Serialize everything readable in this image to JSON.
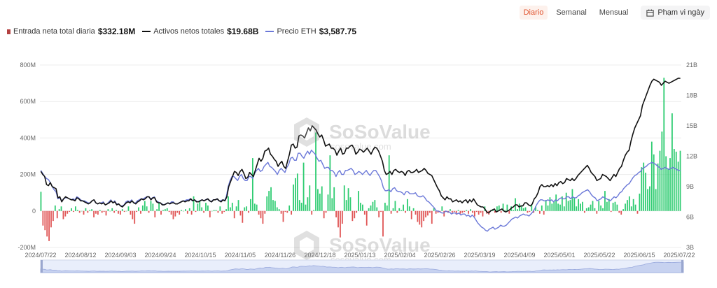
{
  "header": {
    "tabs": [
      {
        "label": "Diario",
        "active": true
      },
      {
        "label": "Semanal",
        "active": false
      },
      {
        "label": "Mensual",
        "active": false
      }
    ],
    "date_range_label": "Phạm vi ngày",
    "date_range_icon": "calendar-icon"
  },
  "legend": {
    "items": [
      {
        "label": "Entrada neta total diaria",
        "value": "$332.18M",
        "color": "#2e7d4f",
        "kind": "bar"
      },
      {
        "label": "Activos netos totales",
        "value": "$19.68B",
        "color": "#111111",
        "kind": "line"
      },
      {
        "label": "Precio ETH",
        "value": "$3,587.75",
        "color": "#6b78d8",
        "kind": "line"
      }
    ]
  },
  "watermark": {
    "brand": "SoSoValue",
    "url": "sosovalue.com"
  },
  "colors": {
    "inflow": "#2ecc71",
    "outflow": "#e05555",
    "assets_line": "#111111",
    "eth_line": "#6b78d8",
    "grid": "#ececec"
  },
  "chart_data": {
    "type": "bar",
    "x_tick_labels": [
      "2024/07/22",
      "2024/08/12",
      "2024/09/03",
      "2024/09/24",
      "2024/10/15",
      "2024/11/05",
      "2024/11/26",
      "2024/12/18",
      "2025/01/13",
      "2025/02/04",
      "2025/02/26",
      "2025/03/19",
      "2025/04/09",
      "2025/05/01",
      "2025/05/22",
      "2025/06/15",
      "2025/07/22"
    ],
    "y_left": {
      "ticks": [
        "800M",
        "600M",
        "400M",
        "200M",
        "0",
        "-200M"
      ],
      "range": [
        -200,
        800
      ],
      "unit": "M USD"
    },
    "y_right": {
      "ticks": [
        "21B",
        "18B",
        "15B",
        "12B",
        "9B",
        "6B",
        "3B"
      ],
      "range": [
        3,
        21
      ],
      "unit": "B USD"
    },
    "series": [
      {
        "name": "Entrada neta total diaria",
        "kind": "bar",
        "values": [
          105,
          -80,
          -105,
          -140,
          -165,
          -90,
          -55,
          30,
          -40,
          10,
          25,
          -45,
          -30,
          -15,
          -5,
          15,
          -5,
          25,
          5,
          -10,
          0,
          -20,
          15,
          -10,
          5,
          10,
          -35,
          -15,
          -20,
          5,
          -10,
          -5,
          -25,
          10,
          0,
          15,
          -10,
          5,
          -15,
          -20,
          10,
          -5,
          0,
          25,
          -20,
          -45,
          -70,
          -5,
          20,
          -15,
          30,
          55,
          25,
          -10,
          55,
          40,
          -35,
          10,
          45,
          -20,
          5,
          10,
          15,
          -5,
          -20,
          -45,
          -30,
          -10,
          -20,
          5,
          0,
          10,
          -15,
          15,
          -20,
          80,
          -5,
          40,
          55,
          20,
          -10,
          45,
          30,
          -35,
          0,
          5,
          5,
          -10,
          25,
          -15,
          -5,
          10,
          80,
          20,
          45,
          -40,
          25,
          60,
          -25,
          -65,
          20,
          25,
          -10,
          65,
          290,
          40,
          35,
          -20,
          -40,
          -70,
          -15,
          80,
          110,
          130,
          60,
          55,
          20,
          10,
          -15,
          -60,
          -5,
          -10,
          30,
          -20,
          145,
          180,
          205,
          60,
          45,
          265,
          35,
          75,
          140,
          -20,
          5,
          430,
          120,
          95,
          135,
          -40,
          -10,
          90,
          305,
          70,
          130,
          -35,
          -90,
          -145,
          -70,
          140,
          60,
          125,
          75,
          -55,
          -40,
          -10,
          110,
          45,
          35,
          -20,
          -80,
          15,
          30,
          50,
          60,
          20,
          -35,
          -5,
          -140,
          45,
          30,
          305,
          -15,
          15,
          55,
          -10,
          15,
          5,
          35,
          -10,
          65,
          25,
          -45,
          15,
          -20,
          -60,
          -75,
          -90,
          -55,
          -35,
          -25,
          -10,
          -70,
          15,
          -15,
          -10,
          -5,
          25,
          -30,
          -5,
          -10,
          10,
          -10,
          -5,
          -20,
          5,
          -15,
          -10,
          -5,
          5,
          -15,
          10,
          -10,
          -30,
          -5,
          -20,
          -10,
          -30,
          25,
          -15,
          -20,
          5,
          10,
          -10,
          25,
          30,
          -10,
          40,
          5,
          35,
          -15,
          25,
          5,
          70,
          10,
          40,
          25,
          15,
          20,
          -10,
          -5,
          35,
          -10,
          25,
          5,
          -15,
          30,
          -20,
          60,
          30,
          75,
          40,
          55,
          90,
          40,
          35,
          80,
          25,
          100,
          55,
          60,
          120,
          70,
          25,
          65,
          40,
          50,
          -10,
          15,
          20,
          35,
          55,
          15,
          -15,
          55,
          30,
          15,
          110,
          50,
          65,
          -5,
          45,
          50,
          35,
          -10,
          -20,
          10,
          40,
          60,
          80,
          25,
          65,
          35,
          -15,
          95,
          240,
          265,
          210,
          120,
          135,
          380,
          310,
          120,
          260,
          330,
          435,
          730,
          300,
          230,
          290,
          535,
          340,
          325,
          270,
          330
        ],
        "unit": "M USD"
      },
      {
        "name": "Activos netos totales",
        "kind": "line",
        "values": [
          10.5,
          10.2,
          10.0,
          9.2,
          9.1,
          9.4,
          9.0,
          8.9,
          8.8,
          7.9,
          8.0,
          7.5,
          7.8,
          8.0,
          7.9,
          7.8,
          7.7,
          7.7,
          7.6,
          7.9,
          7.8,
          7.6,
          7.6,
          7.5,
          7.4,
          7.3,
          7.4,
          7.6,
          7.7,
          7.4,
          7.3,
          7.4,
          7.3,
          7.4,
          7.2,
          7.3,
          7.4,
          7.6,
          7.4,
          7.5,
          7.2,
          7.3,
          7.1,
          7.0,
          7.2,
          7.4,
          7.5,
          7.4,
          7.6,
          7.4,
          7.3,
          7.5,
          7.6,
          7.8,
          7.7,
          7.8,
          8.0,
          8.0,
          7.7,
          7.9,
          7.9,
          7.5,
          7.4,
          7.4,
          7.2,
          7.2,
          7.3,
          7.4,
          7.3,
          7.4,
          7.4,
          7.3,
          7.3,
          7.4,
          7.5,
          7.6,
          7.5,
          7.6,
          7.6,
          7.8,
          7.6,
          7.7,
          7.5,
          7.5,
          7.6,
          7.7,
          7.6,
          7.7,
          7.8,
          7.6,
          7.5,
          7.7,
          7.7,
          7.8,
          7.6,
          7.5,
          7.7,
          7.6,
          8.0,
          9.0,
          9.5,
          10.0,
          10.5,
          10.4,
          10.1,
          10.5,
          10.7,
          10.3,
          9.8,
          9.9,
          10.4,
          10.2,
          10.0,
          10.6,
          11.2,
          11.8,
          11.5,
          11.8,
          12.5,
          12.6,
          12.8,
          12.2,
          12.0,
          11.7,
          11.5,
          11.0,
          11.3,
          11.5,
          11.0,
          10.8,
          11.5,
          12.2,
          13.1,
          13.2,
          12.8,
          12.9,
          14.0,
          14.1,
          14.0,
          13.8,
          14.3,
          14.8,
          14.5,
          15.0,
          14.8,
          14.6,
          14.2,
          13.9,
          14.1,
          13.6,
          13.0,
          13.1,
          13.2,
          12.8,
          12.8,
          12.6,
          12.1,
          12.5,
          12.8,
          12.2,
          12.3,
          12.8,
          12.8,
          13.0,
          13.1,
          12.8,
          12.2,
          12.4,
          12.7,
          12.6,
          12.4,
          12.6,
          12.8,
          12.5,
          12.2,
          12.6,
          12.9,
          12.8,
          12.5,
          12.0,
          11.5,
          10.6,
          10.2,
          10.3,
          10.5,
          10.2,
          10.6,
          10.7,
          10.5,
          10.4,
          10.5,
          10.4,
          10.1,
          10.5,
          10.6,
          10.4,
          10.4,
          10.5,
          10.7,
          10.4,
          10.5,
          10.6,
          10.8,
          10.6,
          10.3,
          10.2,
          10.1,
          9.7,
          9.3,
          8.9,
          8.6,
          8.1,
          7.9,
          7.7,
          8.0,
          7.8,
          7.8,
          7.5,
          7.6,
          7.7,
          7.5,
          7.6,
          7.4,
          7.6,
          7.7,
          7.4,
          7.7,
          7.5,
          7.8,
          7.5,
          7.2,
          7.1,
          7.0,
          7.0,
          6.8,
          6.5,
          6.4,
          6.6,
          6.7,
          6.8,
          6.5,
          6.6,
          6.7,
          6.8,
          6.6,
          6.5,
          6.6,
          6.7,
          6.9,
          7.0,
          7.2,
          7.2,
          7.0,
          7.1,
          7.1,
          7.4,
          7.4,
          7.2,
          7.1,
          7.3,
          7.8,
          8.0,
          8.4,
          9.0,
          9.2,
          9.0,
          9.0,
          9.1,
          9.0,
          9.2,
          9.0,
          9.3,
          9.1,
          9.4,
          9.5,
          9.3,
          9.4,
          9.8,
          9.7,
          9.6,
          9.8,
          9.6,
          9.8,
          10.1,
          10.3,
          10.5,
          10.7,
          10.9,
          11.1,
          10.8,
          10.4,
          10.2,
          10.0,
          9.6,
          9.7,
          9.8,
          10.2,
          10.1,
          10.0,
          9.8,
          9.6,
          9.9,
          10.2,
          10.0,
          10.4,
          10.8,
          11.0,
          11.6,
          12.1,
          12.4,
          12.6,
          13.5,
          14.2,
          14.8,
          15.2,
          15.6,
          16.0,
          17.0,
          17.5,
          18.0,
          18.5,
          19.0,
          19.4,
          19.6,
          19.5,
          19.4,
          19.3,
          19.0,
          19.2,
          19.4,
          19.3,
          19.2,
          19.3,
          19.4,
          19.5,
          19.6,
          19.7,
          19.68
        ],
        "unit": "B USD"
      },
      {
        "name": "Precio ETH",
        "kind": "line",
        "values": [
          10.6,
          10.3,
          10.0,
          9.8,
          9.7,
          9.4,
          9.0,
          8.7,
          8.5,
          7.8,
          7.9,
          7.6,
          7.8,
          7.9,
          7.9,
          7.8,
          7.7,
          7.8,
          7.7,
          8.0,
          7.9,
          7.7,
          7.6,
          7.6,
          7.5,
          7.4,
          7.4,
          7.6,
          7.7,
          7.4,
          7.3,
          7.4,
          7.4,
          7.5,
          7.2,
          7.3,
          7.5,
          7.7,
          7.4,
          7.6,
          7.3,
          7.3,
          7.1,
          7.1,
          7.2,
          7.5,
          7.6,
          7.5,
          7.7,
          7.4,
          7.4,
          7.6,
          7.7,
          7.8,
          7.8,
          7.9,
          8.0,
          8.0,
          7.8,
          7.9,
          8.0,
          7.6,
          7.5,
          7.4,
          7.3,
          7.2,
          7.3,
          7.4,
          7.3,
          7.5,
          7.5,
          7.3,
          7.3,
          7.4,
          7.5,
          7.6,
          7.6,
          7.7,
          7.7,
          7.8,
          7.6,
          7.7,
          7.6,
          7.5,
          7.6,
          7.7,
          7.6,
          7.7,
          7.8,
          7.6,
          7.5,
          7.7,
          7.7,
          7.8,
          7.6,
          7.6,
          7.7,
          7.6,
          8.0,
          9.0,
          9.6,
          10.0,
          10.0,
          9.8,
          9.6,
          10.0,
          10.2,
          9.8,
          9.6,
          9.6,
          10.0,
          10.0,
          9.8,
          10.3,
          10.6,
          10.8,
          10.5,
          10.6,
          11.0,
          11.2,
          11.4,
          11.0,
          10.9,
          10.7,
          10.5,
          10.2,
          10.6,
          10.8,
          10.6,
          10.4,
          10.9,
          11.2,
          11.8,
          11.9,
          11.6,
          11.6,
          12.3,
          12.3,
          12.0,
          11.8,
          12.2,
          12.5,
          12.2,
          12.6,
          12.4,
          12.2,
          11.8,
          11.5,
          11.6,
          11.2,
          10.8,
          10.9,
          10.9,
          10.6,
          10.6,
          10.4,
          10.0,
          10.4,
          10.6,
          10.2,
          10.2,
          10.6,
          10.6,
          10.7,
          10.8,
          10.6,
          10.2,
          10.3,
          10.5,
          10.4,
          10.2,
          10.4,
          10.6,
          10.3,
          10.1,
          10.4,
          10.6,
          10.6,
          10.3,
          10.0,
          9.6,
          8.9,
          8.6,
          8.6,
          8.7,
          8.5,
          8.8,
          8.9,
          8.6,
          8.5,
          8.5,
          8.4,
          8.2,
          8.5,
          8.5,
          8.3,
          8.3,
          8.3,
          8.4,
          8.1,
          8.0,
          8.0,
          8.1,
          7.9,
          7.6,
          7.5,
          7.3,
          7.1,
          6.9,
          6.6,
          6.6,
          6.5,
          6.4,
          6.4,
          6.6,
          6.5,
          6.5,
          6.3,
          6.4,
          6.4,
          6.3,
          6.4,
          6.2,
          6.3,
          6.3,
          6.1,
          6.2,
          6.0,
          6.2,
          6.0,
          5.7,
          5.4,
          5.2,
          5.0,
          4.9,
          4.7,
          4.6,
          4.8,
          4.9,
          5.0,
          4.8,
          4.9,
          5.0,
          5.2,
          5.1,
          5.1,
          5.2,
          5.4,
          5.6,
          5.8,
          5.9,
          6.0,
          5.9,
          6.1,
          6.2,
          6.3,
          6.2,
          6.2,
          6.1,
          6.3,
          6.5,
          6.8,
          7.2,
          7.5,
          7.7,
          7.7,
          7.6,
          7.6,
          7.7,
          7.6,
          7.7,
          7.5,
          7.7,
          7.6,
          7.8,
          7.9,
          7.8,
          7.8,
          8.0,
          8.0,
          7.8,
          8.0,
          7.9,
          7.9,
          8.1,
          8.2,
          8.4,
          8.5,
          8.6,
          8.7,
          8.5,
          8.2,
          8.0,
          7.9,
          7.6,
          7.7,
          7.8,
          8.0,
          7.9,
          7.8,
          7.7,
          7.6,
          7.8,
          8.0,
          7.9,
          8.1,
          8.4,
          8.5,
          8.8,
          9.0,
          9.2,
          9.3,
          9.6,
          9.9,
          10.1,
          10.2,
          10.4,
          10.5,
          10.8,
          10.9,
          11.0,
          11.2,
          11.3,
          11.4,
          11.3,
          11.2,
          11.0,
          10.9,
          10.7,
          10.8,
          10.9,
          10.8,
          10.7,
          10.8,
          10.9,
          10.8,
          10.7,
          10.6,
          10.6
        ],
        "unit": "B USD (scaled to right axis)"
      }
    ]
  }
}
